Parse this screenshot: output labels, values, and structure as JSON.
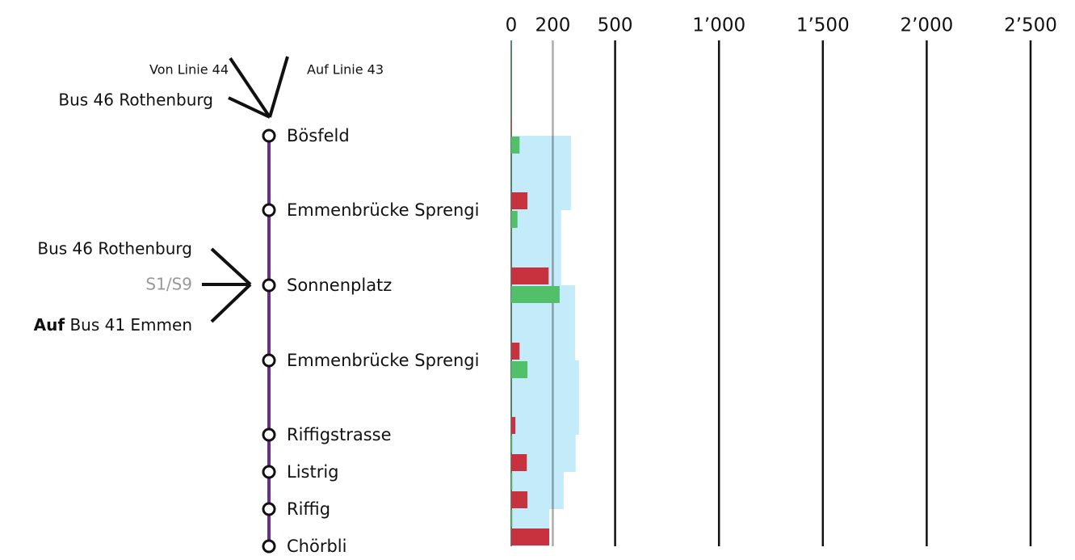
{
  "chart_data": {
    "type": "route-load",
    "categories": [
      "Bösfeld",
      "Emmenbrücke Sprengi",
      "Sonnenplatz",
      "Emmenbrücke Sprengi",
      "Riffigstrasse",
      "Listrig",
      "Riffig",
      "Chörbli"
    ],
    "series": [
      {
        "color": "#c8323f",
        "values": [
          3,
          78,
          180,
          40,
          20,
          75,
          78,
          183
        ]
      },
      {
        "color": "#52c06a",
        "values": [
          40,
          30,
          233,
          78,
          5,
          5,
          5,
          0
        ]
      },
      {
        "color": "#c4ebfa",
        "values": [
          287,
          240,
          307,
          326,
          310,
          252,
          183,
          null
        ]
      }
    ],
    "line_color": "#6a2e8e",
    "xlim": [
      0,
      2500
    ],
    "xticks": [
      0,
      200,
      500,
      {
        "value": 1000,
        "label": "1’000"
      },
      {
        "value": 1500,
        "label": "1’500"
      },
      {
        "value": 2000,
        "label": "2’000"
      },
      {
        "value": 2500,
        "label": "2’500"
      }
    ],
    "annotations": {
      "top_from": "Von Linie 44",
      "top_to": "Auf Linie 43",
      "top_bus": "Bus 46 Rothenburg",
      "mid_bus": "Bus 46 Rothenburg",
      "mid_rail": "S1/S9",
      "mid_auf_bold": "Auf",
      "mid_auf_rest": "Bus 41 Emmen"
    }
  }
}
